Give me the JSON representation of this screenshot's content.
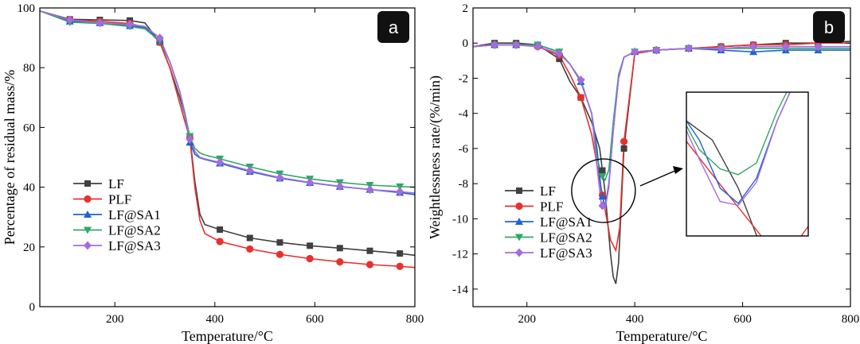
{
  "chart_data": [
    {
      "type": "line",
      "panel": "a",
      "xlabel": "Temperature/°C",
      "ylabel": "Percentage of residual mass/%",
      "xlim": [
        50,
        800
      ],
      "ylim": [
        0,
        100
      ],
      "xticks": [
        200,
        400,
        600,
        800
      ],
      "yticks": [
        0,
        20,
        40,
        60,
        80,
        100
      ],
      "grid": false,
      "legend": "lower-left",
      "series": [
        {
          "name": "LF",
          "color": "#404040",
          "marker": "square",
          "x": [
            50,
            110,
            170,
            230,
            260,
            290,
            310,
            330,
            340,
            350,
            360,
            370,
            380,
            410,
            470,
            530,
            590,
            650,
            710,
            770,
            800
          ],
          "y": [
            99,
            96.2,
            96,
            95.8,
            95,
            88.5,
            80,
            70,
            64,
            57,
            42,
            31,
            27.5,
            25.8,
            23,
            21.5,
            20.4,
            19.6,
            18.7,
            17.8,
            17.2
          ],
          "mx": [
            110,
            170,
            230,
            290,
            350,
            410,
            470,
            530,
            590,
            650,
            710,
            770
          ]
        },
        {
          "name": "PLF",
          "color": "#e8312f",
          "marker": "circle",
          "x": [
            50,
            110,
            170,
            230,
            260,
            290,
            310,
            330,
            340,
            350,
            360,
            370,
            380,
            410,
            470,
            530,
            590,
            650,
            710,
            770,
            800
          ],
          "y": [
            99,
            96,
            95.5,
            94.8,
            93.5,
            88.5,
            80,
            68,
            62,
            56.5,
            40,
            29,
            24.5,
            21.8,
            19.3,
            17.5,
            16.1,
            15,
            14.1,
            13.5,
            13.1
          ],
          "mx": [
            110,
            170,
            230,
            290,
            350,
            410,
            470,
            530,
            590,
            650,
            710,
            770
          ]
        },
        {
          "name": "LF@SA1",
          "color": "#2060d8",
          "marker": "tri-up",
          "x": [
            50,
            110,
            170,
            230,
            260,
            290,
            310,
            330,
            340,
            350,
            360,
            370,
            380,
            410,
            470,
            530,
            590,
            650,
            710,
            770,
            800
          ],
          "y": [
            99,
            95.5,
            95,
            94,
            93.5,
            89,
            82,
            72,
            64,
            55,
            51,
            49.8,
            49.3,
            48,
            45.2,
            43,
            41.5,
            40.2,
            39.2,
            38.2,
            37.5
          ],
          "mx": [
            110,
            170,
            230,
            290,
            350,
            410,
            470,
            530,
            590,
            650,
            710,
            770
          ]
        },
        {
          "name": "LF@SA2",
          "color": "#2fa866",
          "marker": "tri-down",
          "x": [
            50,
            110,
            170,
            230,
            260,
            290,
            310,
            330,
            340,
            350,
            360,
            370,
            380,
            410,
            470,
            530,
            590,
            650,
            710,
            770,
            800
          ],
          "y": [
            99,
            95.2,
            94.8,
            93.8,
            93,
            89,
            82,
            72,
            65,
            57,
            53,
            51.5,
            50.8,
            49.5,
            46.8,
            44.5,
            42.8,
            41.6,
            40.7,
            40.2,
            40
          ],
          "mx": [
            110,
            170,
            230,
            290,
            350,
            410,
            470,
            530,
            590,
            650,
            710,
            770
          ]
        },
        {
          "name": "LF@SA3",
          "color": "#a56be0",
          "marker": "diamond",
          "x": [
            50,
            110,
            170,
            230,
            260,
            290,
            310,
            330,
            340,
            350,
            360,
            370,
            380,
            410,
            470,
            530,
            590,
            650,
            710,
            770,
            800
          ],
          "y": [
            99,
            96,
            95,
            94.5,
            93.8,
            90,
            82,
            72,
            64,
            56,
            52,
            50,
            49.5,
            48.3,
            45.5,
            43.2,
            41.6,
            40.3,
            39.2,
            38.5,
            38
          ],
          "mx": [
            110,
            170,
            230,
            290,
            350,
            410,
            470,
            530,
            590,
            650,
            710,
            770
          ]
        }
      ]
    },
    {
      "type": "line",
      "panel": "b",
      "xlabel": "Temperature/°C",
      "ylabel": "Weightlessness rate/(%/min)",
      "xlim": [
        100,
        800
      ],
      "ylim": [
        -15,
        2
      ],
      "xticks": [
        200,
        400,
        600,
        800
      ],
      "yticks": [
        2,
        0,
        -2,
        -4,
        -6,
        -8,
        -10,
        -12,
        -14
      ],
      "grid": false,
      "legend": "lower-left",
      "inset": "zoom of peak region (~330–370 °C), upper-right",
      "series": [
        {
          "name": "LF",
          "color": "#404040",
          "marker": "square",
          "x": [
            100,
            140,
            180,
            220,
            260,
            280,
            300,
            320,
            335,
            345,
            355,
            360,
            365,
            370,
            380,
            400,
            440,
            500,
            560,
            620,
            680,
            740,
            800
          ],
          "y": [
            -0.2,
            0,
            0,
            -0.1,
            -0.9,
            -2.2,
            -3.1,
            -4.5,
            -6,
            -8.5,
            -12,
            -13.3,
            -13.7,
            -12.5,
            -6,
            -0.6,
            -0.4,
            -0.3,
            -0.2,
            -0.1,
            0,
            0,
            0.1
          ],
          "mx": [
            140,
            180,
            220,
            260,
            300,
            340,
            380,
            440,
            500,
            560,
            620,
            680,
            740
          ]
        },
        {
          "name": "PLF",
          "color": "#e8312f",
          "marker": "circle",
          "x": [
            100,
            140,
            180,
            220,
            260,
            280,
            300,
            320,
            335,
            345,
            355,
            365,
            372,
            380,
            400,
            440,
            500,
            560,
            620,
            680,
            740,
            800
          ],
          "y": [
            -0.2,
            -0.1,
            -0.1,
            -0.2,
            -0.7,
            -1.8,
            -3.1,
            -5.2,
            -7.8,
            -9.5,
            -11.2,
            -11.8,
            -10.5,
            -5.6,
            -0.6,
            -0.4,
            -0.3,
            -0.2,
            -0.1,
            -0.1,
            0,
            0
          ],
          "mx": [
            140,
            180,
            220,
            260,
            300,
            340,
            380,
            440,
            500,
            560,
            620,
            680,
            740
          ]
        },
        {
          "name": "LF@SA1",
          "color": "#2060d8",
          "marker": "tri-up",
          "x": [
            100,
            140,
            180,
            220,
            260,
            280,
            300,
            320,
            330,
            338,
            345,
            352,
            360,
            370,
            380,
            400,
            440,
            500,
            560,
            620,
            680,
            740,
            800
          ],
          "y": [
            -0.2,
            -0.1,
            -0.1,
            -0.1,
            -0.5,
            -1.2,
            -2.2,
            -4,
            -6,
            -8.5,
            -9.3,
            -8,
            -5,
            -2,
            -0.8,
            -0.5,
            -0.4,
            -0.3,
            -0.4,
            -0.5,
            -0.4,
            -0.4,
            -0.4
          ],
          "mx": [
            140,
            180,
            220,
            260,
            300,
            340,
            400,
            440,
            500,
            560,
            620,
            680,
            740
          ]
        },
        {
          "name": "LF@SA2",
          "color": "#2fa866",
          "marker": "tri-down",
          "x": [
            100,
            140,
            180,
            220,
            260,
            280,
            300,
            320,
            330,
            338,
            345,
            352,
            360,
            370,
            380,
            400,
            440,
            500,
            560,
            620,
            680,
            740,
            800
          ],
          "y": [
            -0.2,
            -0.1,
            -0.1,
            -0.1,
            -0.5,
            -1.2,
            -2.2,
            -4,
            -6.5,
            -7.5,
            -7.8,
            -7.2,
            -4.5,
            -1.8,
            -0.8,
            -0.5,
            -0.4,
            -0.3,
            -0.3,
            -0.3,
            -0.3,
            -0.3,
            -0.3
          ],
          "mx": [
            140,
            180,
            220,
            260,
            300,
            340,
            400,
            440,
            500,
            560,
            620,
            680,
            740
          ]
        },
        {
          "name": "LF@SA3",
          "color": "#a56be0",
          "marker": "diamond",
          "x": [
            100,
            140,
            180,
            220,
            260,
            280,
            300,
            320,
            330,
            338,
            345,
            352,
            360,
            370,
            380,
            400,
            440,
            500,
            560,
            620,
            680,
            740,
            800
          ],
          "y": [
            -0.2,
            -0.1,
            -0.1,
            -0.2,
            -0.6,
            -1.2,
            -2.1,
            -4,
            -7,
            -9.2,
            -9.4,
            -8.2,
            -5,
            -2,
            -0.8,
            -0.5,
            -0.4,
            -0.3,
            -0.3,
            -0.2,
            -0.2,
            -0.2,
            -0.2
          ],
          "mx": [
            140,
            180,
            220,
            260,
            300,
            340,
            400,
            440,
            500,
            560,
            620,
            680,
            740
          ]
        }
      ]
    }
  ]
}
